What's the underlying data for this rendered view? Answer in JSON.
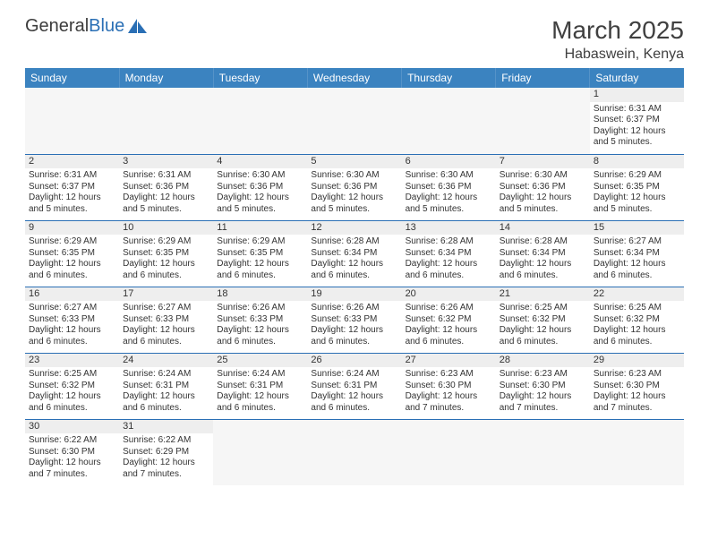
{
  "logo": {
    "part1": "General",
    "part2": "Blue"
  },
  "title": "March 2025",
  "location": "Habaswein, Kenya",
  "colors": {
    "header_bg": "#3b83c0",
    "header_text": "#ffffff",
    "row_divider": "#2a6fb5",
    "daynum_bg": "#eeeeee",
    "empty_bg": "#f6f6f6",
    "text": "#333333"
  },
  "weekdays": [
    "Sunday",
    "Monday",
    "Tuesday",
    "Wednesday",
    "Thursday",
    "Friday",
    "Saturday"
  ],
  "weeks": [
    [
      null,
      null,
      null,
      null,
      null,
      null,
      {
        "d": "1",
        "sr": "Sunrise: 6:31 AM",
        "ss": "Sunset: 6:37 PM",
        "dl": "Daylight: 12 hours and 5 minutes."
      }
    ],
    [
      {
        "d": "2",
        "sr": "Sunrise: 6:31 AM",
        "ss": "Sunset: 6:37 PM",
        "dl": "Daylight: 12 hours and 5 minutes."
      },
      {
        "d": "3",
        "sr": "Sunrise: 6:31 AM",
        "ss": "Sunset: 6:36 PM",
        "dl": "Daylight: 12 hours and 5 minutes."
      },
      {
        "d": "4",
        "sr": "Sunrise: 6:30 AM",
        "ss": "Sunset: 6:36 PM",
        "dl": "Daylight: 12 hours and 5 minutes."
      },
      {
        "d": "5",
        "sr": "Sunrise: 6:30 AM",
        "ss": "Sunset: 6:36 PM",
        "dl": "Daylight: 12 hours and 5 minutes."
      },
      {
        "d": "6",
        "sr": "Sunrise: 6:30 AM",
        "ss": "Sunset: 6:36 PM",
        "dl": "Daylight: 12 hours and 5 minutes."
      },
      {
        "d": "7",
        "sr": "Sunrise: 6:30 AM",
        "ss": "Sunset: 6:36 PM",
        "dl": "Daylight: 12 hours and 5 minutes."
      },
      {
        "d": "8",
        "sr": "Sunrise: 6:29 AM",
        "ss": "Sunset: 6:35 PM",
        "dl": "Daylight: 12 hours and 5 minutes."
      }
    ],
    [
      {
        "d": "9",
        "sr": "Sunrise: 6:29 AM",
        "ss": "Sunset: 6:35 PM",
        "dl": "Daylight: 12 hours and 6 minutes."
      },
      {
        "d": "10",
        "sr": "Sunrise: 6:29 AM",
        "ss": "Sunset: 6:35 PM",
        "dl": "Daylight: 12 hours and 6 minutes."
      },
      {
        "d": "11",
        "sr": "Sunrise: 6:29 AM",
        "ss": "Sunset: 6:35 PM",
        "dl": "Daylight: 12 hours and 6 minutes."
      },
      {
        "d": "12",
        "sr": "Sunrise: 6:28 AM",
        "ss": "Sunset: 6:34 PM",
        "dl": "Daylight: 12 hours and 6 minutes."
      },
      {
        "d": "13",
        "sr": "Sunrise: 6:28 AM",
        "ss": "Sunset: 6:34 PM",
        "dl": "Daylight: 12 hours and 6 minutes."
      },
      {
        "d": "14",
        "sr": "Sunrise: 6:28 AM",
        "ss": "Sunset: 6:34 PM",
        "dl": "Daylight: 12 hours and 6 minutes."
      },
      {
        "d": "15",
        "sr": "Sunrise: 6:27 AM",
        "ss": "Sunset: 6:34 PM",
        "dl": "Daylight: 12 hours and 6 minutes."
      }
    ],
    [
      {
        "d": "16",
        "sr": "Sunrise: 6:27 AM",
        "ss": "Sunset: 6:33 PM",
        "dl": "Daylight: 12 hours and 6 minutes."
      },
      {
        "d": "17",
        "sr": "Sunrise: 6:27 AM",
        "ss": "Sunset: 6:33 PM",
        "dl": "Daylight: 12 hours and 6 minutes."
      },
      {
        "d": "18",
        "sr": "Sunrise: 6:26 AM",
        "ss": "Sunset: 6:33 PM",
        "dl": "Daylight: 12 hours and 6 minutes."
      },
      {
        "d": "19",
        "sr": "Sunrise: 6:26 AM",
        "ss": "Sunset: 6:33 PM",
        "dl": "Daylight: 12 hours and 6 minutes."
      },
      {
        "d": "20",
        "sr": "Sunrise: 6:26 AM",
        "ss": "Sunset: 6:32 PM",
        "dl": "Daylight: 12 hours and 6 minutes."
      },
      {
        "d": "21",
        "sr": "Sunrise: 6:25 AM",
        "ss": "Sunset: 6:32 PM",
        "dl": "Daylight: 12 hours and 6 minutes."
      },
      {
        "d": "22",
        "sr": "Sunrise: 6:25 AM",
        "ss": "Sunset: 6:32 PM",
        "dl": "Daylight: 12 hours and 6 minutes."
      }
    ],
    [
      {
        "d": "23",
        "sr": "Sunrise: 6:25 AM",
        "ss": "Sunset: 6:32 PM",
        "dl": "Daylight: 12 hours and 6 minutes."
      },
      {
        "d": "24",
        "sr": "Sunrise: 6:24 AM",
        "ss": "Sunset: 6:31 PM",
        "dl": "Daylight: 12 hours and 6 minutes."
      },
      {
        "d": "25",
        "sr": "Sunrise: 6:24 AM",
        "ss": "Sunset: 6:31 PM",
        "dl": "Daylight: 12 hours and 6 minutes."
      },
      {
        "d": "26",
        "sr": "Sunrise: 6:24 AM",
        "ss": "Sunset: 6:31 PM",
        "dl": "Daylight: 12 hours and 6 minutes."
      },
      {
        "d": "27",
        "sr": "Sunrise: 6:23 AM",
        "ss": "Sunset: 6:30 PM",
        "dl": "Daylight: 12 hours and 7 minutes."
      },
      {
        "d": "28",
        "sr": "Sunrise: 6:23 AM",
        "ss": "Sunset: 6:30 PM",
        "dl": "Daylight: 12 hours and 7 minutes."
      },
      {
        "d": "29",
        "sr": "Sunrise: 6:23 AM",
        "ss": "Sunset: 6:30 PM",
        "dl": "Daylight: 12 hours and 7 minutes."
      }
    ],
    [
      {
        "d": "30",
        "sr": "Sunrise: 6:22 AM",
        "ss": "Sunset: 6:30 PM",
        "dl": "Daylight: 12 hours and 7 minutes."
      },
      {
        "d": "31",
        "sr": "Sunrise: 6:22 AM",
        "ss": "Sunset: 6:29 PM",
        "dl": "Daylight: 12 hours and 7 minutes."
      },
      null,
      null,
      null,
      null,
      null
    ]
  ]
}
